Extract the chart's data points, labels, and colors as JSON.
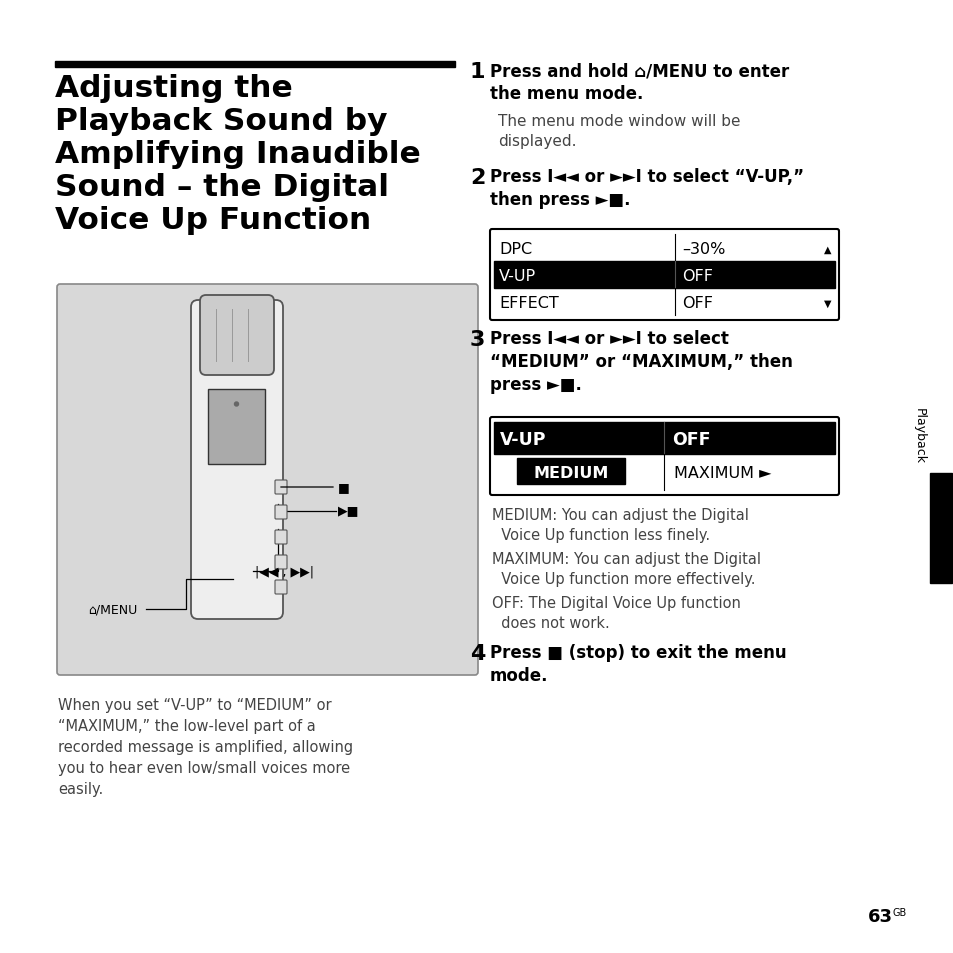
{
  "title_lines": [
    "Adjusting the",
    "Playback Sound by",
    "Amplifying Inaudible",
    "Sound – the Digital",
    "Voice Up Function"
  ],
  "step1_bold": "Press and hold ⌂/MENU to enter\nthe menu mode.",
  "step1_normal": "The menu mode window will be\ndisplayed.",
  "step2_bold": "Press I◄◄ or ►►I to select “V-UP,”\nthen press ►■.",
  "step3_bold": "Press I◄◄ or ►►I to select\n“MEDIUM” or “MAXIMUM,” then\npress ►■.",
  "step4_bold": "Press ■ (stop) to exit the menu\nmode.",
  "table1": [
    {
      "left": "DPC",
      "right": "–30%",
      "highlight": false,
      "scroll_up": true,
      "scroll_dn": false
    },
    {
      "left": "V-UP",
      "right": "OFF",
      "highlight": true,
      "scroll_up": false,
      "scroll_dn": false
    },
    {
      "left": "EFFECT",
      "right": "OFF",
      "highlight": false,
      "scroll_up": false,
      "scroll_dn": true
    }
  ],
  "table2_row0_left": "V-UP",
  "table2_row0_right": "OFF",
  "table2_row1_left": "MEDIUM",
  "table2_row1_right": "MAXIMUM ►",
  "desc_text": "When you set “V-UP” to “MEDIUM” or\n“MAXIMUM,” the low-level part of a\nrecorded message is amplified, allowing\nyou to hear even low/small voices more\neasily.",
  "medium_desc1": "MEDIUM: You can adjust the Digital",
  "medium_desc2": "  Voice Up function less finely.",
  "maximum_desc1": "MAXIMUM: You can adjust the Digital",
  "maximum_desc2": "  Voice Up function more effectively.",
  "off_desc1": "OFF: The Digital Voice Up function",
  "off_desc2": "  does not work.",
  "playback_label": "Playback",
  "page_num": "63",
  "page_sup": "GB",
  "bg_color": "#ffffff",
  "black": "#000000",
  "dark_gray": "#555555",
  "mid_gray": "#888888",
  "light_gray": "#d8d8d8",
  "text_gray": "#444444"
}
